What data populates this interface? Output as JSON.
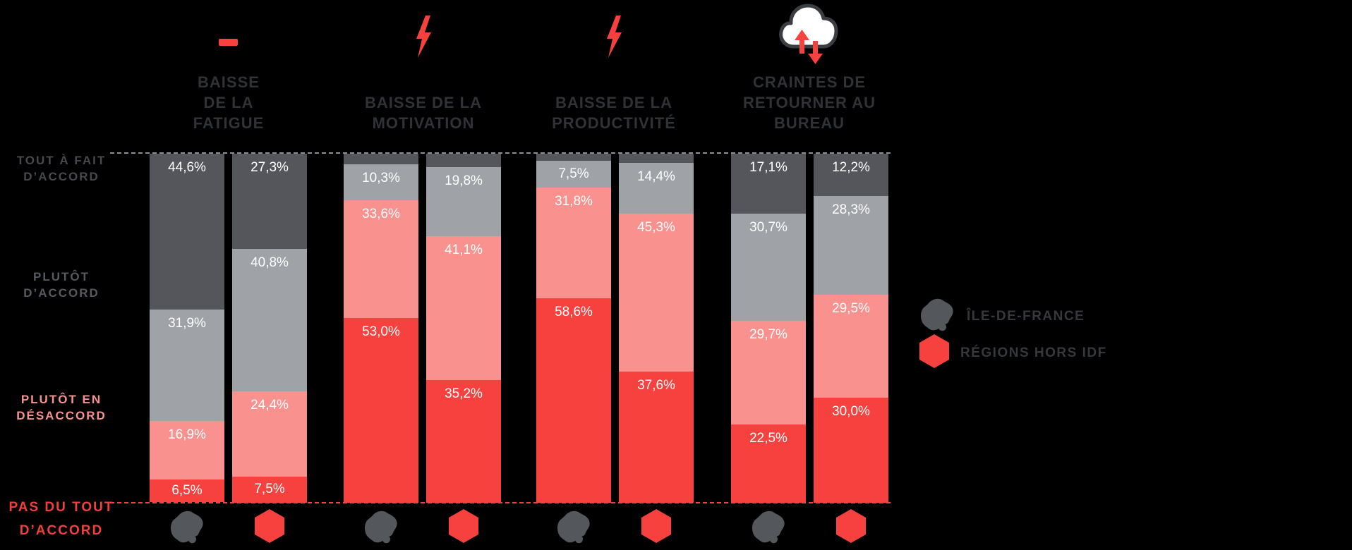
{
  "colors": {
    "background": "#000000",
    "segment_colors": [
      "#54565B",
      "#9FA2A6",
      "#F9918E",
      "#F6413E"
    ],
    "accent_red": "#F6413E",
    "idf_gray": "#54575B",
    "title_text": "#2F3337",
    "legend_text": "#35393D",
    "value_text": "#FFFFFF"
  },
  "header": {
    "groups": [
      {
        "icon": "minus-icon",
        "title_lines": [
          "BAISSE",
          "DE LA",
          "FATIGUE"
        ]
      },
      {
        "icon": "lightning-icon",
        "title_lines": [
          "BAISSE DE LA",
          "MOTIVATION"
        ]
      },
      {
        "icon": "lightning-icon",
        "title_lines": [
          "BAISSE DE LA",
          "PRODUCTIVITÉ"
        ]
      },
      {
        "icon": "cloud-return-icon",
        "title_lines": [
          "CRAINTES DE",
          "RETOURNER AU",
          "BUREAU"
        ]
      }
    ]
  },
  "y_axis": {
    "rows": [
      {
        "lines": [
          "TOUT À FAIT",
          "D’ACCORD"
        ],
        "color": "#46494D"
      },
      {
        "lines": [
          "PLUTÔT",
          "D’ACCORD"
        ],
        "color": "#56595E"
      },
      {
        "lines": [
          "PLUTÔT EN",
          "DÉSACCORD"
        ],
        "color": "#F79290"
      },
      {
        "lines": [
          "PAS DU TOUT",
          "D’ACCORD"
        ],
        "color": "#F23F3C"
      }
    ]
  },
  "legend": {
    "items": [
      {
        "icon": "idf-map-icon",
        "label": "ÎLE-DE-FRANCE"
      },
      {
        "icon": "hexagon-icon",
        "label": "RÉGIONS HORS IDF"
      }
    ]
  },
  "chart_data": {
    "type": "bar",
    "subtype": "stacked-100-percent",
    "unit": "percent",
    "ylim": [
      0,
      100
    ],
    "stack_order_top_to_bottom": [
      "TOUT À FAIT D’ACCORD",
      "PLUTÔT D’ACCORD",
      "PLUTÔT EN DÉSACCORD",
      "PAS DU TOUT D’ACCORD"
    ],
    "categories": [
      "BAISSE DE LA FATIGUE",
      "BAISSE DE LA MOTIVATION",
      "BAISSE DE LA PRODUCTIVITÉ",
      "CRAINTES DE RETOURNER AU BUREAU"
    ],
    "groups": [
      {
        "category": "BAISSE DE LA FATIGUE",
        "bars": [
          {
            "region": "ÎLE-DE-FRANCE",
            "segments": [
              {
                "name": "TOUT À FAIT D’ACCORD",
                "value": 44.6,
                "label": "44,6%"
              },
              {
                "name": "PLUTÔT D’ACCORD",
                "value": 31.9,
                "label": "31,9%"
              },
              {
                "name": "PLUTÔT EN DÉSACCORD",
                "value": 16.9,
                "label": "16,9%"
              },
              {
                "name": "PAS DU TOUT D’ACCORD",
                "value": 6.5,
                "label": "6,5%"
              }
            ]
          },
          {
            "region": "RÉGIONS HORS IDF",
            "segments": [
              {
                "name": "TOUT À FAIT D’ACCORD",
                "value": 27.3,
                "label": "27,3%"
              },
              {
                "name": "PLUTÔT D’ACCORD",
                "value": 40.8,
                "label": "40,8%"
              },
              {
                "name": "PLUTÔT EN DÉSACCORD",
                "value": 24.4,
                "label": "24,4%"
              },
              {
                "name": "PAS DU TOUT D’ACCORD",
                "value": 7.5,
                "label": "7,5%"
              }
            ]
          }
        ]
      },
      {
        "category": "BAISSE DE LA MOTIVATION",
        "bars": [
          {
            "region": "ÎLE-DE-FRANCE",
            "segments": [
              {
                "name": "TOUT À FAIT D’ACCORD",
                "value": 3.1,
                "label": "",
                "estimated": true
              },
              {
                "name": "PLUTÔT D’ACCORD",
                "value": 10.3,
                "label": "10,3%"
              },
              {
                "name": "PLUTÔT EN DÉSACCORD",
                "value": 33.6,
                "label": "33,6%"
              },
              {
                "name": "PAS DU TOUT D’ACCORD",
                "value": 53.0,
                "label": "53,0%"
              }
            ]
          },
          {
            "region": "RÉGIONS HORS IDF",
            "segments": [
              {
                "name": "TOUT À FAIT D’ACCORD",
                "value": 3.9,
                "label": "",
                "estimated": true
              },
              {
                "name": "PLUTÔT D’ACCORD",
                "value": 19.8,
                "label": "19,8%"
              },
              {
                "name": "PLUTÔT EN DÉSACCORD",
                "value": 41.1,
                "label": "41,1%"
              },
              {
                "name": "PAS DU TOUT D’ACCORD",
                "value": 35.2,
                "label": "35,2%"
              }
            ]
          }
        ]
      },
      {
        "category": "BAISSE DE LA PRODUCTIVITÉ",
        "bars": [
          {
            "region": "ÎLE-DE-FRANCE",
            "segments": [
              {
                "name": "TOUT À FAIT D’ACCORD",
                "value": 2.1,
                "label": "",
                "estimated": true
              },
              {
                "name": "PLUTÔT D’ACCORD",
                "value": 7.5,
                "label": "7,5%"
              },
              {
                "name": "PLUTÔT EN DÉSACCORD",
                "value": 31.8,
                "label": "31,8%"
              },
              {
                "name": "PAS DU TOUT D’ACCORD",
                "value": 58.6,
                "label": "58,6%"
              }
            ]
          },
          {
            "region": "RÉGIONS HORS IDF",
            "segments": [
              {
                "name": "TOUT À FAIT D’ACCORD",
                "value": 2.7,
                "label": "",
                "estimated": true
              },
              {
                "name": "PLUTÔT D’ACCORD",
                "value": 14.4,
                "label": "14,4%"
              },
              {
                "name": "PLUTÔT EN DÉSACCORD",
                "value": 45.3,
                "label": "45,3%"
              },
              {
                "name": "PAS DU TOUT D’ACCORD",
                "value": 37.6,
                "label": "37,6%"
              }
            ]
          }
        ]
      },
      {
        "category": "CRAINTES DE RETOURNER AU BUREAU",
        "bars": [
          {
            "region": "ÎLE-DE-FRANCE",
            "segments": [
              {
                "name": "TOUT À FAIT D’ACCORD",
                "value": 17.1,
                "label": "17,1%"
              },
              {
                "name": "PLUTÔT D’ACCORD",
                "value": 30.7,
                "label": "30,7%"
              },
              {
                "name": "PLUTÔT EN DÉSACCORD",
                "value": 29.7,
                "label": "29,7%"
              },
              {
                "name": "PAS DU TOUT D’ACCORD",
                "value": 22.5,
                "label": "22,5%"
              }
            ]
          },
          {
            "region": "RÉGIONS HORS IDF",
            "segments": [
              {
                "name": "TOUT À FAIT D’ACCORD",
                "value": 12.2,
                "label": "12,2%"
              },
              {
                "name": "PLUTÔT D’ACCORD",
                "value": 28.3,
                "label": "28,3%"
              },
              {
                "name": "PLUTÔT EN DÉSACCORD",
                "value": 29.5,
                "label": "29,5%"
              },
              {
                "name": "PAS DU TOUT D’ACCORD",
                "value": 30.0,
                "label": "30,0%"
              }
            ]
          }
        ]
      }
    ]
  }
}
